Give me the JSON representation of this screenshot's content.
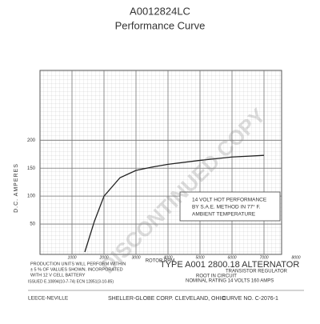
{
  "chart_data": {
    "type": "line",
    "title": "A0012824LC",
    "subtitle": "Performance Curve",
    "x_label": "ROTOR RPM",
    "y_label": "D.C. AMPERES",
    "x": [
      1400,
      1700,
      2000,
      2500,
      3000,
      3500,
      4000,
      5000,
      6000,
      7000
    ],
    "series": [
      {
        "name": "14 VOLT HOT PERFORMANCE",
        "color": "#222222",
        "values": [
          0,
          55,
          100,
          133,
          146,
          152,
          157,
          164,
          170,
          173
        ]
      }
    ],
    "xlim": [
      0,
      7500
    ],
    "xticks": [
      1000,
      2000,
      3000,
      4000,
      5000,
      6000,
      7000,
      8000
    ],
    "ylim": [
      0,
      325
    ],
    "yticks": [
      50,
      100,
      150,
      200
    ],
    "grid": true,
    "box_text": [
      "14 VOLT HOT PERFORMANCE",
      "BY S.A.E. METHOD IN 77° F.",
      "AMBIENT TEMPERATURE"
    ],
    "footer": [
      "PRODUCTION UNITS WILL PERFORM WITHIN",
      "± 5 % OF VALUES SHOWN. INCORPORATED",
      "WITH 12 V CELL BATTERY",
      "TYPE A001 2800.18 ALTERNATOR",
      "TRANSISTOR REGULATOR",
      "ROOT IN CIRCUIT",
      "NOMINAL RATING 14 VOLTS 160 AMPS",
      "ISSUED E.10894(10-7-74) ECN 12851(3-10-85)",
      "LEECE-NEVILLE",
      "SHELLER-GLOBE CORP. CLEVELAND, OHIO",
      "CURVE NO. C-2076-1"
    ],
    "watermark": "DISCONTINUED COPY"
  }
}
